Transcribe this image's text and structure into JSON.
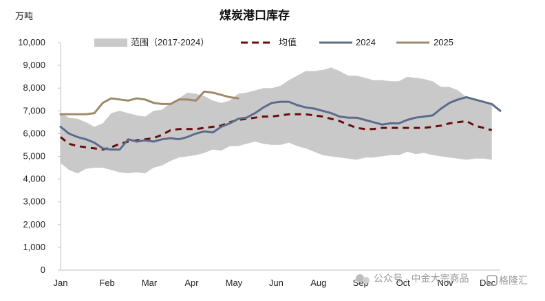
{
  "chart_data": {
    "type": "line",
    "title": "煤炭港口库存",
    "ylabel": "万吨",
    "xlabel": "",
    "ylim": [
      0,
      10000
    ],
    "yticks": [
      0,
      1000,
      2000,
      3000,
      4000,
      5000,
      6000,
      7000,
      8000,
      9000,
      10000
    ],
    "ytick_labels": [
      "0",
      "1,000",
      "2,000",
      "3,000",
      "4,000",
      "5,000",
      "6,000",
      "7,000",
      "8,000",
      "9,000",
      "10,000"
    ],
    "x_unit": "week",
    "xlim": [
      1,
      53
    ],
    "months": [
      {
        "label": "Jan",
        "week": 1
      },
      {
        "label": "Feb",
        "week": 6.5
      },
      {
        "label": "Mar",
        "week": 11.5
      },
      {
        "label": "Apr",
        "week": 16.5
      },
      {
        "label": "May",
        "week": 21.5
      },
      {
        "label": "Jun",
        "week": 26.5
      },
      {
        "label": "Aug",
        "week": 31.5
      },
      {
        "label": "Sep",
        "week": 36.5
      },
      {
        "label": "Oct",
        "week": 41.5
      },
      {
        "label": "Nov",
        "week": 46.5
      },
      {
        "label": "Dec",
        "week": 51.5
      }
    ],
    "band": {
      "name": "范围（2017-2024）",
      "color": "#c9c9c9",
      "x": [
        1,
        2,
        3,
        4,
        5,
        6,
        7,
        8,
        9,
        10,
        11,
        12,
        13,
        14,
        15,
        16,
        17,
        18,
        19,
        20,
        21,
        22,
        23,
        24,
        25,
        26,
        27,
        28,
        29,
        30,
        31,
        32,
        33,
        34,
        35,
        36,
        37,
        38,
        39,
        40,
        41,
        42,
        43,
        44,
        45,
        46,
        47,
        48,
        49,
        50,
        51,
        52
      ],
      "upper": [
        6900,
        6700,
        6650,
        6500,
        6300,
        6450,
        6900,
        7000,
        6900,
        6800,
        6750,
        7000,
        7050,
        7350,
        7550,
        7800,
        7750,
        7650,
        7450,
        7350,
        7450,
        7750,
        7800,
        7900,
        8000,
        8000,
        8100,
        8350,
        8550,
        8750,
        8750,
        8800,
        8900,
        8750,
        8550,
        8550,
        8450,
        8350,
        8350,
        8300,
        8300,
        8500,
        8450,
        8400,
        8300,
        8050,
        8050,
        7900,
        7600,
        7500,
        7450,
        7300
      ],
      "lower": [
        4700,
        4400,
        4250,
        4450,
        4500,
        4500,
        4400,
        4300,
        4250,
        4300,
        4250,
        4500,
        4600,
        4800,
        4950,
        5000,
        5050,
        5150,
        5300,
        5250,
        5450,
        5450,
        5550,
        5650,
        5550,
        5500,
        5500,
        5600,
        5450,
        5350,
        5200,
        5050,
        5000,
        4950,
        4900,
        4850,
        4950,
        4950,
        5000,
        5050,
        5050,
        5200,
        5100,
        5150,
        5050,
        5000,
        4950,
        4900,
        4850,
        4900,
        4900,
        4850
      ]
    },
    "series": [
      {
        "name": "均值",
        "color": "#6b0b0b",
        "style": "dashed",
        "x": [
          1,
          2,
          3,
          4,
          5,
          6,
          7,
          8,
          9,
          10,
          11,
          12,
          13,
          14,
          15,
          16,
          17,
          18,
          19,
          20,
          21,
          22,
          23,
          24,
          25,
          26,
          27,
          28,
          29,
          30,
          31,
          32,
          33,
          34,
          35,
          36,
          37,
          38,
          39,
          40,
          41,
          42,
          43,
          44,
          45,
          46,
          47,
          48,
          49,
          50,
          51,
          52
        ],
        "values": [
          5850,
          5550,
          5450,
          5400,
          5350,
          5300,
          5400,
          5550,
          5650,
          5700,
          5750,
          5800,
          5950,
          6150,
          6200,
          6200,
          6200,
          6250,
          6300,
          6350,
          6500,
          6600,
          6650,
          6700,
          6750,
          6750,
          6800,
          6850,
          6850,
          6850,
          6800,
          6750,
          6650,
          6550,
          6400,
          6250,
          6200,
          6200,
          6250,
          6250,
          6250,
          6250,
          6250,
          6250,
          6300,
          6350,
          6450,
          6500,
          6550,
          6350,
          6250,
          6150
        ]
      },
      {
        "name": "2024",
        "color": "#5b6b8c",
        "style": "solid",
        "x": [
          1,
          2,
          3,
          4,
          5,
          6,
          7,
          8,
          9,
          10,
          11,
          12,
          13,
          14,
          15,
          16,
          17,
          18,
          19,
          20,
          21,
          22,
          23,
          24,
          25,
          26,
          27,
          28,
          29,
          30,
          31,
          32,
          33,
          34,
          35,
          36,
          37,
          38,
          39,
          40,
          41,
          42,
          43,
          44,
          45,
          46,
          47,
          48,
          49,
          50,
          51,
          52,
          53
        ],
        "values": [
          6300,
          6000,
          5850,
          5750,
          5600,
          5350,
          5300,
          5300,
          5750,
          5650,
          5700,
          5650,
          5750,
          5800,
          5750,
          5850,
          6000,
          6100,
          6050,
          6300,
          6450,
          6650,
          6700,
          6900,
          7150,
          7350,
          7400,
          7400,
          7250,
          7150,
          7100,
          7000,
          6900,
          6750,
          6700,
          6700,
          6600,
          6500,
          6400,
          6450,
          6450,
          6600,
          6700,
          6750,
          6800,
          7100,
          7350,
          7500,
          7600,
          7500,
          7400,
          7300,
          7000
        ]
      },
      {
        "name": "2025",
        "color": "#a08868",
        "style": "solid",
        "x": [
          1,
          2,
          3,
          4,
          5,
          6,
          7,
          8,
          9,
          10,
          11,
          12,
          13,
          14,
          15,
          16,
          17,
          18,
          19,
          20,
          21,
          22
        ],
        "values": [
          6850,
          6850,
          6850,
          6850,
          6900,
          7350,
          7550,
          7500,
          7450,
          7550,
          7500,
          7350,
          7300,
          7300,
          7500,
          7500,
          7450,
          7850,
          7800,
          7700,
          7600,
          7550
        ]
      }
    ],
    "legend": [
      "范围（2017-2024）",
      "均值",
      "2024",
      "2025"
    ]
  },
  "watermark": {
    "line": "公众号 · 中金大宗商品",
    "brand": "格隆汇"
  }
}
